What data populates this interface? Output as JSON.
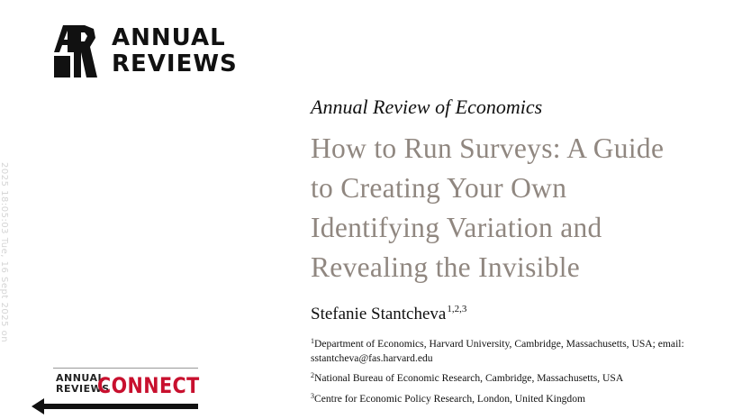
{
  "logo": {
    "line1": "ANNUAL",
    "line2": "REVIEWS",
    "mark_letters": "AR"
  },
  "side_watermark": "2025 18:05:03 Tue, 16 Sept 2025 on",
  "journal": "Annual Review of Economics",
  "title_lines": [
    "How to Run Surveys: A Guide",
    "to Creating Your Own",
    "Identifying Variation and",
    "Revealing the Invisible"
  ],
  "author": {
    "name": "Stefanie Stantcheva",
    "superscript": "1,2,3"
  },
  "affiliations": [
    {
      "num": "1",
      "text": "Department of Economics, Harvard University, Cambridge, Massachusetts, USA; email: sstantcheva@fas.harvard.edu"
    },
    {
      "num": "2",
      "text": "National Bureau of Economic Research, Cambridge, Massachusetts, USA"
    },
    {
      "num": "3",
      "text": "Centre for Economic Policy Research, London, United Kingdom"
    }
  ],
  "connect": {
    "small_line1": "ANNUAL",
    "small_line2": "REVIEWS",
    "big": "CONNECT"
  },
  "colors": {
    "title": "#908780",
    "connect_red": "#c8102e",
    "logo_black": "#111111"
  }
}
